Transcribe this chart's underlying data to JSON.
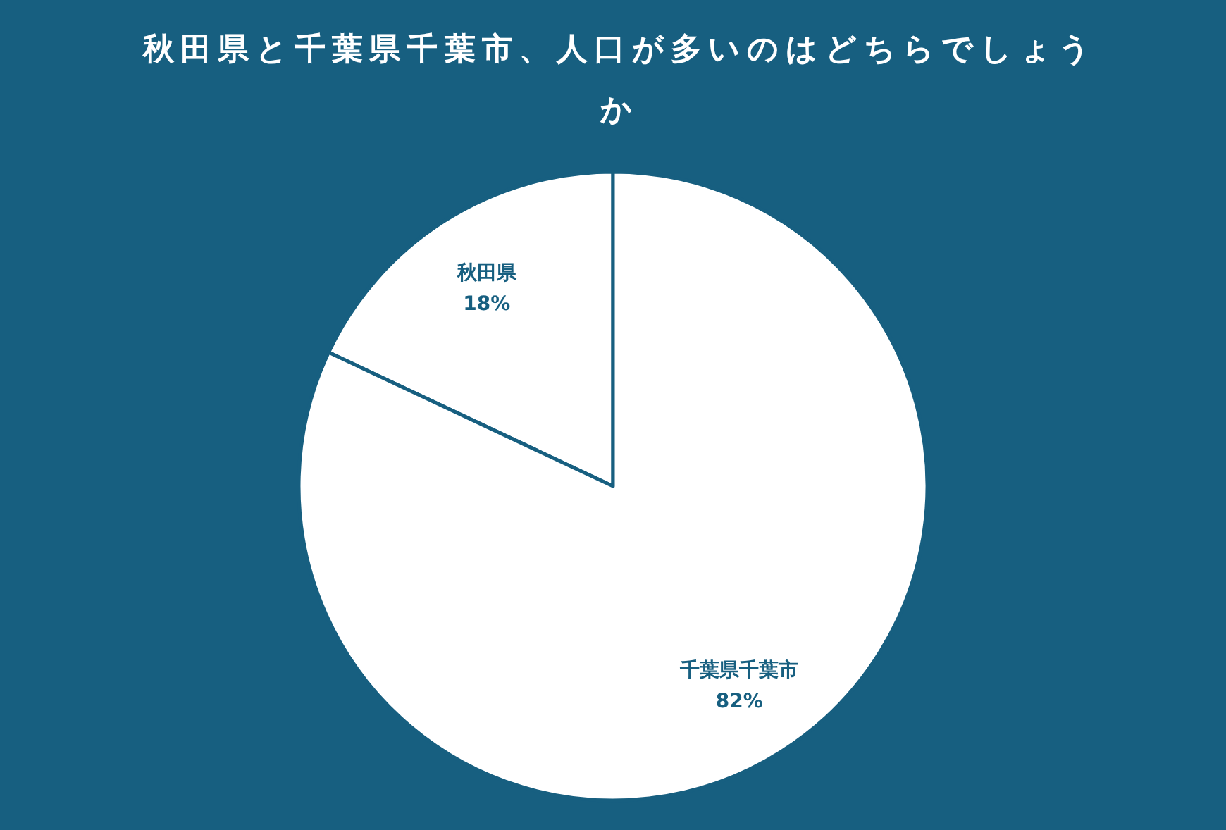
{
  "chart_data": {
    "type": "pie",
    "title": "秋田県と千葉県千葉市、人口が多いのはどちらでしょうか",
    "categories": [
      "秋田県",
      "千葉県千葉市"
    ],
    "values": [
      18,
      82
    ],
    "colors": [
      "#ffffff",
      "#ffffff"
    ],
    "value_labels": [
      "18%",
      "82%"
    ]
  }
}
